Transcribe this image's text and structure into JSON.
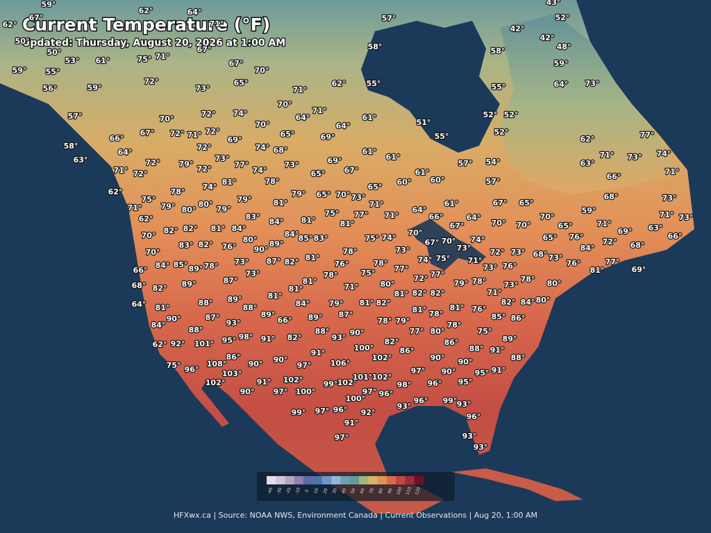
{
  "header": {
    "title": "Current Temperature (°F)",
    "subtitle": "Updated: Thursday, August 20, 2026 at 1:00 AM"
  },
  "stations": [
    "59°",
    "62°",
    "64°",
    "62°",
    "67°",
    "71°",
    "57°",
    "43°",
    "52°",
    "42°",
    "42°",
    "48°",
    "50°",
    "50°",
    "53°",
    "61°",
    "75°",
    "71°",
    "67°",
    "58°",
    "58°",
    "59°",
    "55°",
    "56°",
    "59°",
    "72°",
    "67°",
    "70°",
    "65°",
    "73°",
    "71°",
    "62°",
    "55°",
    "55°",
    "59°",
    "64°",
    "73°",
    "57°",
    "70°",
    "72°",
    "74°",
    "70°",
    "64°",
    "71°",
    "70°",
    "65°",
    "64°",
    "61°",
    "51°",
    "52°",
    "52°",
    "55°",
    "52°",
    "66°",
    "67°",
    "72°",
    "71°",
    "72°",
    "69°",
    "74°",
    "68°",
    "69°",
    "77°",
    "62°",
    "58°",
    "63°",
    "64°",
    "72°",
    "72°",
    "79°",
    "73°",
    "77°",
    "73°",
    "69°",
    "61°",
    "61°",
    "57°",
    "54°",
    "71°",
    "73°",
    "74°",
    "63°",
    "71°",
    "72°",
    "72°",
    "74°",
    "65°",
    "67°",
    "61°",
    "71°",
    "66°",
    "57°",
    "60°",
    "60°",
    "65°",
    "62°",
    "78°",
    "74°",
    "81°",
    "78°",
    "75°",
    "79°",
    "80°",
    "80°",
    "79°",
    "79°",
    "81°",
    "79°",
    "65°",
    "70°",
    "73°",
    "71°",
    "71°",
    "68°",
    "73°",
    "64°",
    "61°",
    "67°",
    "65°",
    "62°",
    "82°",
    "82°",
    "81°",
    "84°",
    "83°",
    "84°",
    "81°",
    "75°",
    "81°",
    "77°",
    "71°",
    "66°",
    "64°",
    "59°",
    "71°",
    "69°",
    "63°",
    "71°",
    "73°",
    "66°",
    "70°",
    "70°",
    "70°",
    "67°",
    "65°",
    "70°",
    "83°",
    "82°",
    "76°",
    "80°",
    "90°",
    "89°",
    "84°",
    "85°",
    "83°",
    "75°",
    "74°",
    "70°",
    "67°",
    "70°",
    "73°",
    "74°",
    "72°",
    "73°",
    "65°",
    "76°",
    "84°",
    "72°",
    "68°",
    "73°",
    "78°",
    "70°",
    "84°",
    "85°",
    "89°",
    "78°",
    "73°",
    "87°",
    "82°",
    "81°",
    "76°",
    "78°",
    "77°",
    "74°",
    "75°",
    "71°",
    "73°",
    "76°",
    "68°",
    "73°",
    "76°",
    "81°",
    "77°",
    "69°",
    "66°",
    "68°",
    "82°",
    "89°",
    "87°",
    "73°",
    "81°",
    "78°",
    "75°",
    "80°",
    "72°",
    "77°",
    "79°",
    "78°",
    "73°",
    "78°",
    "80°",
    "81°",
    "71°",
    "81°",
    "82°",
    "82°",
    "71°",
    "64°",
    "81°",
    "88°",
    "89°",
    "81°",
    "84°",
    "79°",
    "81°",
    "82°",
    "81°",
    "81°",
    "76°",
    "82°",
    "84°",
    "80°",
    "88°",
    "90°",
    "87°",
    "93°",
    "89°",
    "66°",
    "89°",
    "87°",
    "78°",
    "79°",
    "78°",
    "85°",
    "86°",
    "84°",
    "88°",
    "88°",
    "90°",
    "77°",
    "80°",
    "78°",
    "75°",
    "62°",
    "92°",
    "101°",
    "95°",
    "98°",
    "91°",
    "82°",
    "93°",
    "100°",
    "82°",
    "86°",
    "89°",
    "88°",
    "91°",
    "86°",
    "91°",
    "86°",
    "90°",
    "90°",
    "97°",
    "106°",
    "102°",
    "90°",
    "90°",
    "88°",
    "75°",
    "96°",
    "108°",
    "103°",
    "97°",
    "90°",
    "95°",
    "91°",
    "102°",
    "91°",
    "102°",
    "99°",
    "102°",
    "101°",
    "102°",
    "98°",
    "96°",
    "95°",
    "90°",
    "97°",
    "100°",
    "100°",
    "97°",
    "96°",
    "93°",
    "96°",
    "99°",
    "93°",
    "99°",
    "97°",
    "96°",
    "92°",
    "96°",
    "91°",
    "93°",
    "97°",
    "93°"
  ],
  "legend": {
    "ticks": [
      -40,
      -30,
      -20,
      -10,
      0,
      10,
      20,
      30,
      40,
      50,
      60,
      70,
      80,
      90,
      100,
      110,
      120
    ],
    "colors": [
      "#e6dde6",
      "#d3c3d6",
      "#b9a3c4",
      "#8f7fb3",
      "#5e6ca6",
      "#4c75b0",
      "#6b95c8",
      "#93b4d8",
      "#6aa3b0",
      "#5f9e96",
      "#9fb57c",
      "#d6b666",
      "#e49357",
      "#d96a4b",
      "#c2453f",
      "#a22a3a",
      "#6e1028"
    ]
  },
  "footer": "HFXwx.ca | Source: NOAA NWS, Environment Canada | Current Observations | Aug 20, 1:00 AM"
}
